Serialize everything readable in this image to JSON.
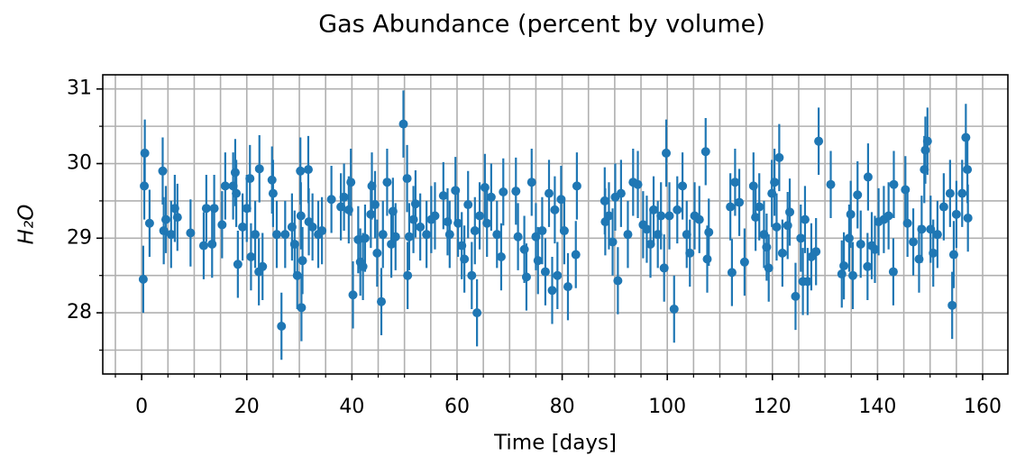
{
  "chart_data": {
    "type": "errorbar",
    "title": "Gas Abundance (percent by volume)",
    "xlabel": "Time [days]",
    "ylabel": "H₂O",
    "xlim": [
      -7.4,
      164.8
    ],
    "ylim": [
      27.18,
      31.19
    ],
    "xticks": [
      0,
      20,
      40,
      60,
      80,
      100,
      120,
      140,
      160
    ],
    "yticks": [
      28,
      29,
      30,
      31
    ],
    "grid": true,
    "xminor_step": 5,
    "yminor_step": 0.5,
    "yerr": 0.45,
    "x": [
      0.3,
      0.5,
      0.6,
      1.5,
      4,
      4.2,
      4.6,
      5.6,
      6.3,
      6.8,
      9.3,
      11.8,
      12.3,
      13.4,
      13.8,
      15.3,
      15.9,
      17.4,
      17.8,
      18,
      18.3,
      19.2,
      20,
      20.6,
      20.8,
      21.6,
      22.4,
      22.3,
      23,
      24.8,
      25,
      25.7,
      26.6,
      27.3,
      28.6,
      29.1,
      29.6,
      30.2,
      30.3,
      30.4,
      30.6,
      31.7,
      31.8,
      32.5,
      33.6,
      34.3,
      36.1,
      37.9,
      38.5,
      39.4,
      39.8,
      40.2,
      41.2,
      41.6,
      42.1,
      42.5,
      43.6,
      43.8,
      44.4,
      44.8,
      45.6,
      45.9,
      46.7,
      47.5,
      47.8,
      48.3,
      49.8,
      50.5,
      50.6,
      50.9,
      51.7,
      52.1,
      53,
      54.2,
      55.1,
      55.8,
      57.4,
      58.2,
      58.6,
      59.7,
      60.2,
      60.9,
      61.4,
      62.1,
      62.8,
      63.4,
      63.8,
      64.3,
      65.3,
      65.7,
      66.5,
      67.6,
      68.4,
      68.8,
      71.2,
      71.6,
      72.8,
      73.2,
      74.2,
      75,
      75.4,
      76.2,
      76.8,
      77.5,
      78.1,
      78.6,
      79.1,
      79.8,
      80.4,
      81.1,
      82.6,
      82.8,
      88.1,
      88.2,
      88.9,
      89.6,
      90.1,
      90.6,
      91.2,
      92.5,
      93.5,
      94.4,
      95.4,
      96.1,
      96.8,
      97.4,
      98.2,
      98.8,
      99.4,
      99.8,
      100.4,
      101.3,
      101.9,
      102.9,
      103.7,
      104.3,
      105.2,
      106.1,
      107.3,
      107.6,
      107.9,
      112,
      112.3,
      112.9,
      113.7,
      114.7,
      116.4,
      116.8,
      117.5,
      118.4,
      118.9,
      119.3,
      119.9,
      120.4,
      120.8,
      121.3,
      121.9,
      122.9,
      123.3,
      124.4,
      125.4,
      125.8,
      126.2,
      126.7,
      127.4,
      128.3,
      128.8,
      131.1,
      133.2,
      133.6,
      134.6,
      134.9,
      135.3,
      136.2,
      136.8,
      138.1,
      138.2,
      138.9,
      139.5,
      140.2,
      141.2,
      142.1,
      143,
      143.1,
      145.3,
      145.7,
      146.8,
      147.9,
      148.4,
      148.9,
      149.1,
      149.5,
      150.1,
      150.6,
      151.4,
      152.6,
      153.8,
      154.2,
      154.5,
      155,
      156.1,
      156.8,
      157.1,
      157.2
    ],
    "series": [
      {
        "color": "#1f77b4",
        "values": [
          28.45,
          29.7,
          30.14,
          29.2,
          29.9,
          29.1,
          29.25,
          29.05,
          29.4,
          29.28,
          29.07,
          28.9,
          29.4,
          28.92,
          29.4,
          29.18,
          29.7,
          29.7,
          29.88,
          29.6,
          28.65,
          29.15,
          29.4,
          29.8,
          28.75,
          29.05,
          29.93,
          28.55,
          28.62,
          29.78,
          29.6,
          29.05,
          27.82,
          29.05,
          29.15,
          28.92,
          28.5,
          29.9,
          29.3,
          28.07,
          28.7,
          29.92,
          29.22,
          29.15,
          29.05,
          29.1,
          29.52,
          29.42,
          29.55,
          29.38,
          29.75,
          28.24,
          28.98,
          28.68,
          28.62,
          29,
          29.32,
          29.7,
          29.45,
          28.8,
          28.15,
          29.05,
          29.75,
          28.92,
          29.36,
          29.02,
          30.53,
          29.8,
          28.5,
          29.02,
          29.25,
          29.46,
          29.15,
          29.05,
          29.25,
          29.3,
          29.57,
          29.22,
          29.05,
          29.64,
          29.2,
          28.9,
          28.72,
          29.45,
          28.5,
          29.1,
          28,
          29.3,
          29.68,
          29.2,
          29.55,
          29.05,
          28.75,
          29.62,
          29.63,
          29.02,
          28.85,
          28.48,
          29.75,
          29.02,
          28.7,
          29.1,
          28.55,
          29.6,
          28.3,
          29.38,
          28.5,
          29.52,
          29.1,
          28.35,
          28.78,
          29.7,
          29.5,
          29.22,
          29.3,
          28.95,
          29.55,
          28.43,
          29.6,
          29.05,
          29.75,
          29.72,
          29.18,
          29.12,
          28.92,
          29.38,
          29.05,
          29.3,
          28.6,
          30.14,
          29.3,
          28.05,
          29.38,
          29.7,
          29.05,
          28.8,
          29.3,
          29.25,
          30.16,
          28.72,
          29.08,
          29.42,
          28.54,
          29.75,
          29.48,
          28.68,
          29.7,
          29.28,
          29.42,
          29.05,
          28.88,
          28.6,
          29.6,
          29.75,
          29.15,
          30.08,
          28.8,
          29.17,
          29.35,
          28.22,
          29,
          28.42,
          29.25,
          28.42,
          28.75,
          28.82,
          30.3,
          29.72,
          28.52,
          28.63,
          29,
          29.32,
          28.5,
          29.58,
          28.92,
          28.62,
          29.82,
          28.9,
          28.85,
          29.22,
          29.25,
          29.3,
          28.55,
          29.72,
          29.65,
          29.2,
          28.95,
          28.72,
          29.12,
          29.92,
          30.18,
          30.3,
          29.12,
          28.8,
          29.05,
          29.42,
          29.6,
          28.1,
          28.78,
          29.32,
          29.6,
          30.35,
          29.92,
          29.27
        ]
      }
    ]
  }
}
